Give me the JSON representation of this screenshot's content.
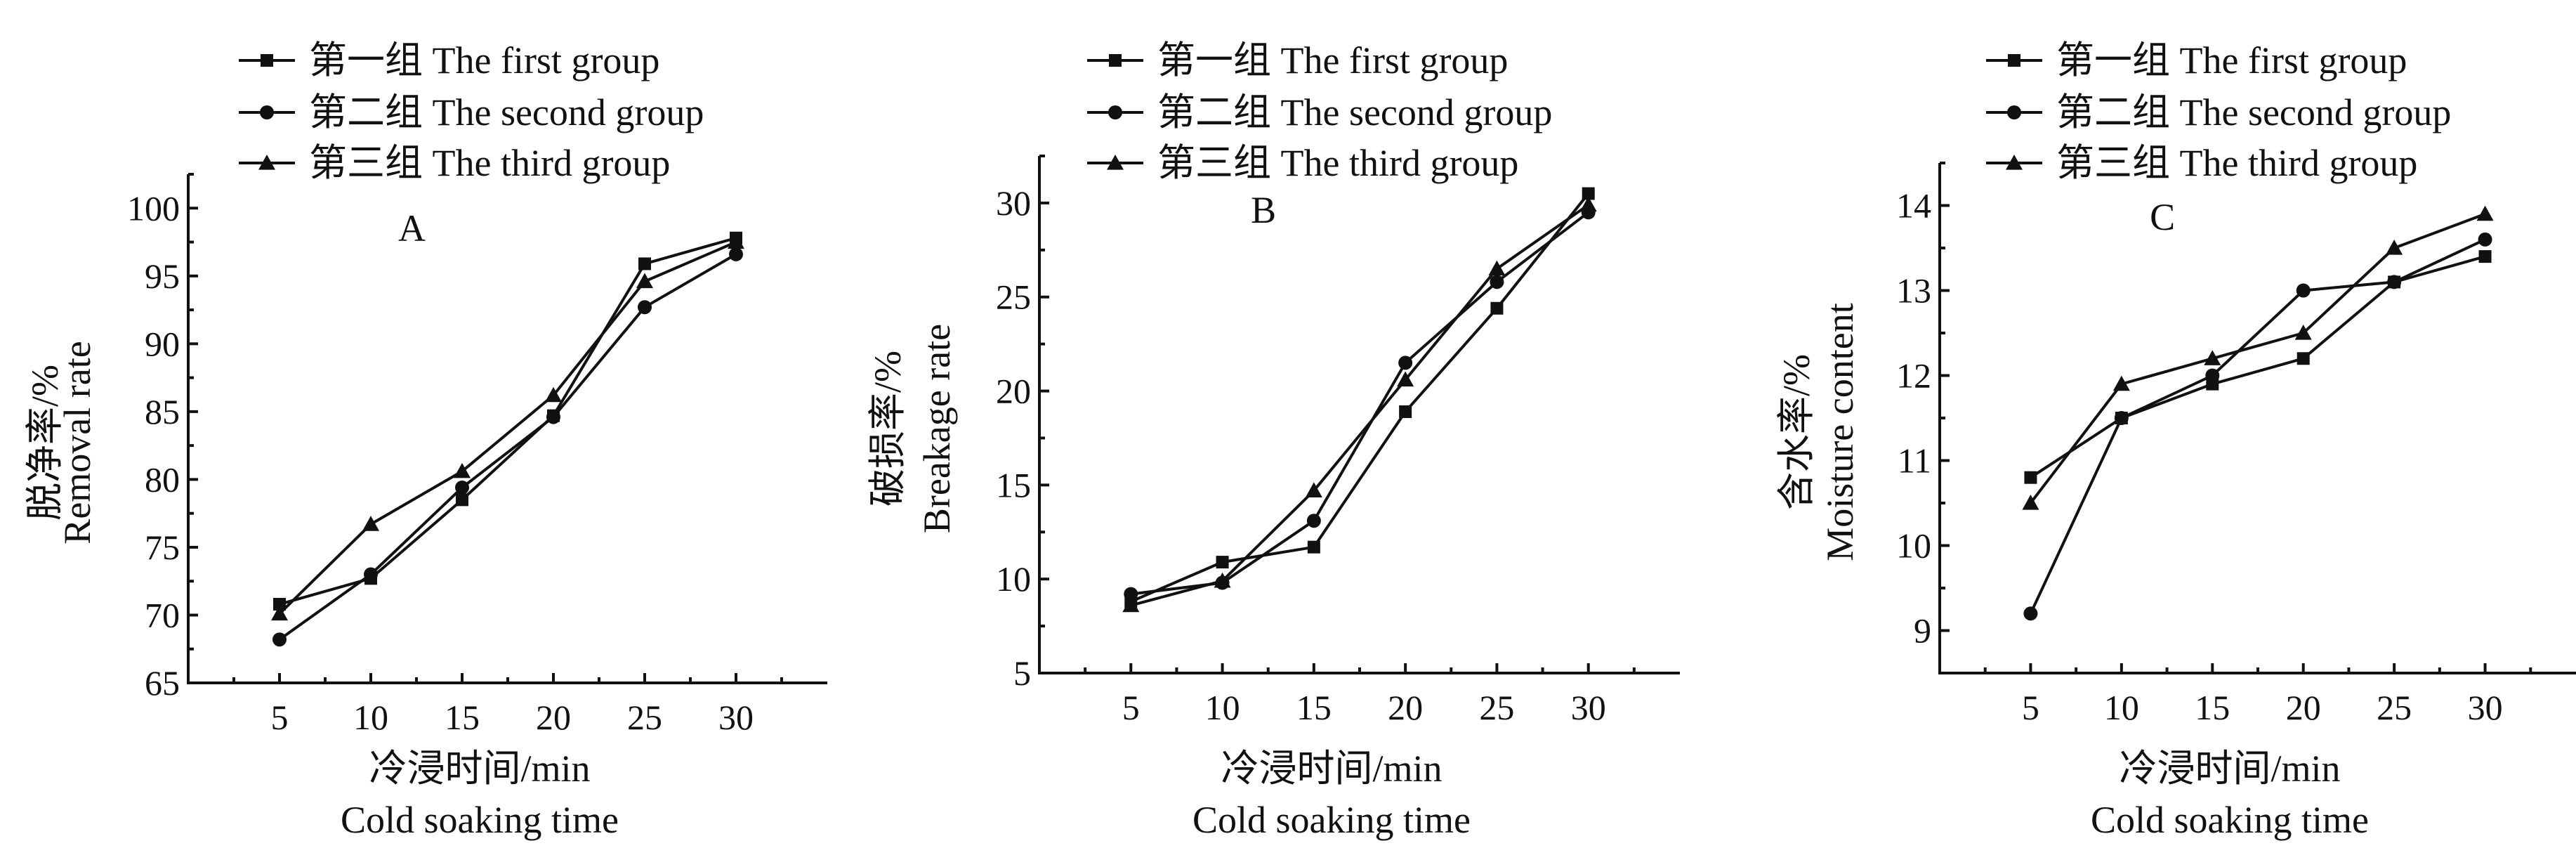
{
  "legend_labels": [
    "第一组 The first group",
    "第二组 The second group",
    "第三组 The third group"
  ],
  "chart_data": [
    {
      "type": "line",
      "panel_label": "A",
      "xlabel_cn": "冷浸时间/min",
      "xlabel_en": "Cold soaking time",
      "ylabel_cn": "脱净率/%",
      "ylabel_en": "Removal rate",
      "x": [
        5,
        10,
        15,
        20,
        25,
        30
      ],
      "xlim": [
        0,
        35
      ],
      "ylim": [
        65,
        102.5
      ],
      "yticks": [
        65,
        70,
        75,
        80,
        85,
        90,
        95,
        100
      ],
      "legend_position": "top-left",
      "series": [
        {
          "name": "第一组 The first group",
          "marker": "square",
          "values": [
            70.8,
            72.7,
            78.5,
            84.7,
            95.9,
            97.8
          ]
        },
        {
          "name": "第二组 The second group",
          "marker": "circle",
          "values": [
            68.2,
            73.0,
            79.4,
            84.6,
            92.7,
            96.6
          ]
        },
        {
          "name": "第三组 The third group",
          "marker": "triangle",
          "values": [
            70.1,
            76.7,
            80.6,
            86.2,
            94.6,
            97.5
          ]
        }
      ]
    },
    {
      "type": "line",
      "panel_label": "B",
      "xlabel_cn": "冷浸时间/min",
      "xlabel_en": "Cold soaking time",
      "ylabel_cn": "破损率/%",
      "ylabel_en": "Breakage rate",
      "x": [
        5,
        10,
        15,
        20,
        25,
        30
      ],
      "xlim": [
        0,
        35
      ],
      "ylim": [
        5,
        32.5
      ],
      "yticks": [
        5,
        10,
        15,
        20,
        25,
        30
      ],
      "legend_position": "top-left",
      "series": [
        {
          "name": "第一组 The first group",
          "marker": "square",
          "values": [
            8.8,
            10.9,
            11.7,
            18.9,
            24.4,
            30.5
          ]
        },
        {
          "name": "第二组 The second group",
          "marker": "circle",
          "values": [
            9.2,
            9.8,
            13.1,
            21.5,
            25.8,
            29.5
          ]
        },
        {
          "name": "第三组 The third group",
          "marker": "triangle",
          "values": [
            8.6,
            9.9,
            14.7,
            20.6,
            26.5,
            29.9
          ]
        }
      ]
    },
    {
      "type": "line",
      "panel_label": "C",
      "xlabel_cn": "冷浸时间/min",
      "xlabel_en": "Cold soaking time",
      "ylabel_cn": "含水率/%",
      "ylabel_en": "Moisture content",
      "x": [
        5,
        10,
        15,
        20,
        25,
        30
      ],
      "xlim": [
        0,
        35
      ],
      "ylim": [
        8.5,
        14.5
      ],
      "yticks": [
        9,
        10,
        11,
        12,
        13,
        14
      ],
      "legend_position": "top-left",
      "series": [
        {
          "name": "第一组 The first group",
          "marker": "square",
          "values": [
            10.8,
            11.5,
            11.9,
            12.2,
            13.1,
            13.4
          ]
        },
        {
          "name": "第二组 The second group",
          "marker": "circle",
          "values": [
            9.2,
            11.5,
            12.0,
            13.0,
            13.1,
            13.6
          ]
        },
        {
          "name": "第三组 The third group",
          "marker": "triangle",
          "values": [
            10.5,
            11.9,
            12.2,
            12.5,
            13.5,
            13.9
          ]
        }
      ]
    }
  ]
}
